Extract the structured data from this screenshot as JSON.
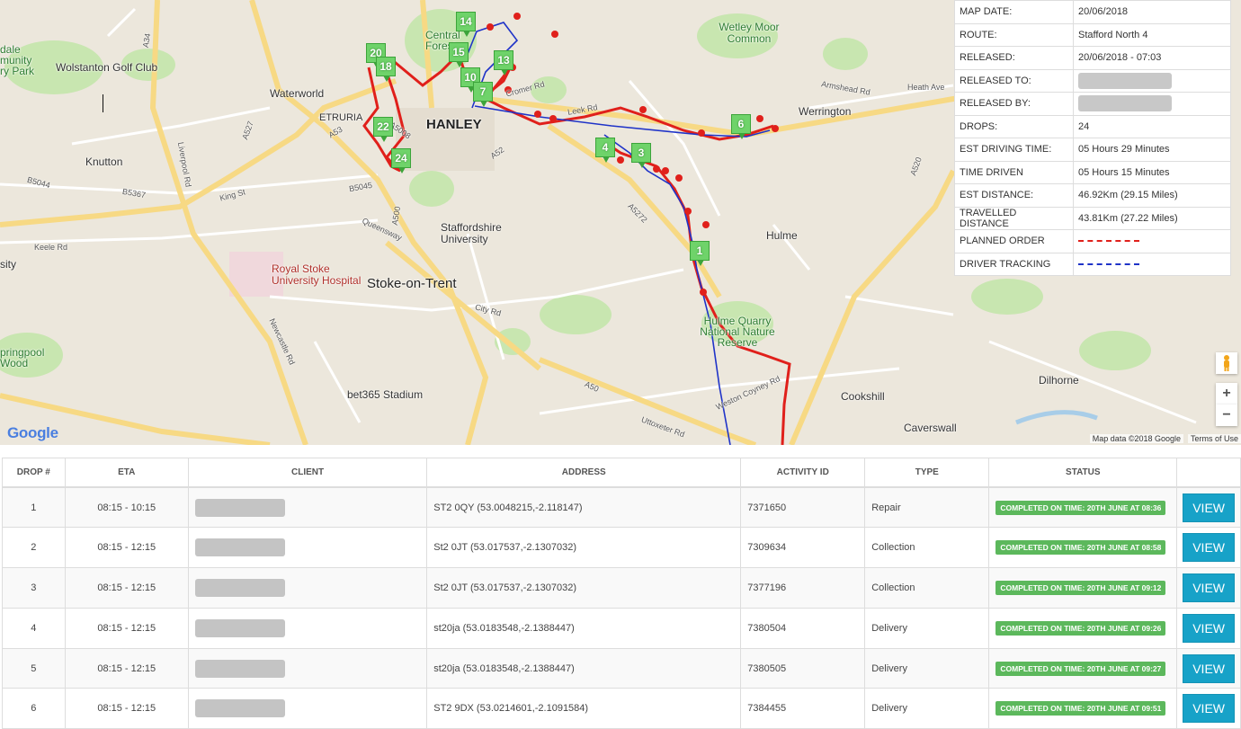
{
  "map": {
    "labels": {
      "hanley": "HANLEY",
      "stoke": "Stoke-on-Trent",
      "wolstanton": "Wolstanton Golf Club",
      "waterworld": "Waterworld",
      "etruria": "ETRURIA",
      "central_forest": "Central Forest",
      "wetley_moor": "Wetley Moor Common",
      "werrington": "Werrington",
      "hulme": "Hulme",
      "hulme_quarry": "Hulme Quarry National Nature Reserve",
      "staffs_uni": "Staffordshire University",
      "royal_stoke": "Royal Stoke University Hospital",
      "bet365": "bet365 Stadium",
      "cookshill": "Cookshill",
      "dilhorne": "Dilhorne",
      "caverswall": "Caverswall",
      "knutton": "Knutton",
      "springpool": "pringpool Wood",
      "dale": "dale munity ry Park",
      "sity": "sity"
    },
    "roads": {
      "a34": "A34",
      "a527": "A527",
      "a53": "A53",
      "a500": "A500",
      "a52": "A52",
      "a5272": "A5272",
      "a50": "A50",
      "a520": "A520",
      "a5008": "A5008",
      "b5044": "B5044",
      "b5367": "B5367",
      "b5045": "B5045",
      "keele_rd": "Keele Rd",
      "king_st": "King St",
      "queensway": "Queensway",
      "city_rd": "City Rd",
      "liverpool_rd": "Liverpool Rd",
      "newcastle_rd": "Newcastle Rd",
      "armshead_rd": "Armshead Rd",
      "weston_coyney": "Weston Coyney Rd",
      "uttoxeter_rd": "Uttoxeter Rd",
      "leek_rd": "Leek Rd",
      "cromer_rd": "Cromer Rd",
      "heath_ave": "Heath Ave"
    },
    "markers": [
      "14",
      "20",
      "18",
      "15",
      "13",
      "10",
      "7",
      "22",
      "24",
      "4",
      "3",
      "6",
      "1"
    ],
    "google": "Google",
    "attribution": "Map data ©2018 Google",
    "terms": "Terms of Use",
    "zoom_in": "+",
    "zoom_out": "−"
  },
  "info": {
    "rows": [
      {
        "label": "MAP DATE:",
        "value": "20/06/2018"
      },
      {
        "label": "ROUTE:",
        "value": "Stafford North 4"
      },
      {
        "label": "RELEASED:",
        "value": "20/06/2018 - 07:03"
      },
      {
        "label": "RELEASED TO:",
        "value": ""
      },
      {
        "label": "RELEASED BY:",
        "value": ""
      },
      {
        "label": "DROPS:",
        "value": "24"
      },
      {
        "label": "EST DRIVING TIME:",
        "value": "05 Hours 29 Minutes"
      },
      {
        "label": "TIME DRIVEN",
        "value": "05 Hours 15 Minutes"
      },
      {
        "label": "EST DISTANCE:",
        "value": "46.92Km (29.15 Miles)"
      },
      {
        "label": "TRAVELLED DISTANCE",
        "value": "43.81Km (27.22 Miles)"
      },
      {
        "label": "PLANNED ORDER",
        "value": ""
      },
      {
        "label": "DRIVER TRACKING",
        "value": ""
      }
    ],
    "planned_color": "#e0201b",
    "tracking_color": "#1f33c8"
  },
  "table": {
    "headers": [
      "DROP #",
      "ETA",
      "CLIENT",
      "ADDRESS",
      "ACTIVITY ID",
      "TYPE",
      "STATUS",
      ""
    ],
    "rows": [
      {
        "drop": "1",
        "eta": "08:15 - 10:15",
        "address": "ST2 0QY (53.0048215,-2.118147)",
        "activity": "7371650",
        "type": "Repair",
        "status": "COMPLETED ON TIME: 20TH JUNE AT 08:36",
        "action": "VIEW"
      },
      {
        "drop": "2",
        "eta": "08:15 - 12:15",
        "address": "St2 0JT (53.017537,-2.1307032)",
        "activity": "7309634",
        "type": "Collection",
        "status": "COMPLETED ON TIME: 20TH JUNE AT 08:58",
        "action": "VIEW"
      },
      {
        "drop": "3",
        "eta": "08:15 - 12:15",
        "address": "St2 0JT (53.017537,-2.1307032)",
        "activity": "7377196",
        "type": "Collection",
        "status": "COMPLETED ON TIME: 20TH JUNE AT 09:12",
        "action": "VIEW"
      },
      {
        "drop": "4",
        "eta": "08:15 - 12:15",
        "address": "st20ja (53.0183548,-2.1388447)",
        "activity": "7380504",
        "type": "Delivery",
        "status": "COMPLETED ON TIME: 20TH JUNE AT 09:26",
        "action": "VIEW"
      },
      {
        "drop": "5",
        "eta": "08:15 - 12:15",
        "address": "st20ja (53.0183548,-2.1388447)",
        "activity": "7380505",
        "type": "Delivery",
        "status": "COMPLETED ON TIME: 20TH JUNE AT 09:27",
        "action": "VIEW"
      },
      {
        "drop": "6",
        "eta": "08:15 - 12:15",
        "address": "ST2 9DX (53.0214601,-2.1091584)",
        "activity": "7384455",
        "type": "Delivery",
        "status": "COMPLETED ON TIME: 20TH JUNE AT 09:51",
        "action": "VIEW"
      }
    ]
  }
}
